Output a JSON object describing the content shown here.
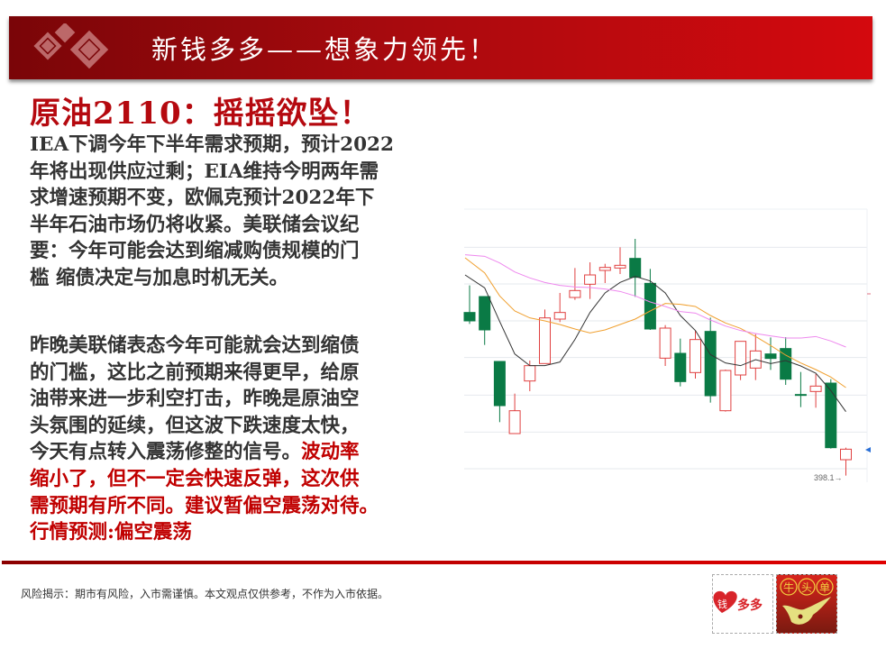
{
  "header": {
    "title": "新钱多多——想象力领先！"
  },
  "main": {
    "title": "原油2110：摇摇欲坠！",
    "paragraph1": [
      "IEA下调今年下半年需求预期，预计2022",
      "年将出现供应过剩；EIA维持今明两年需",
      "求增速预期不变，欧佩克预计2022年下",
      "半年石油市场仍将收紧。美联储会议纪",
      "要：今年可能会达到缩减购债规模的门",
      "槛 缩债决定与加息时机无关。"
    ],
    "paragraph2": [
      {
        "text": "昨晚美联储表态今年可能就会达到缩债",
        "red": ""
      },
      {
        "text": "的门槛，这比之前预期来得更早，给原",
        "red": ""
      },
      {
        "text": "油带来进一步利空打击，昨晚是原油空",
        "red": ""
      },
      {
        "text": "头氛围的延续，但这波下跌速度太快，",
        "red": ""
      },
      {
        "text": "今天有点转入震荡修整的信号。",
        "red": "波动率"
      },
      {
        "text": "",
        "red": "缩小了，但不一定会快速反弹，这次供"
      },
      {
        "text": "",
        "red": "需预期有所不同。建议暂偏空震荡对待。"
      },
      {
        "text": "",
        "red": "行情预测:偏空震荡"
      }
    ]
  },
  "footer": {
    "risk_notice": "风险揭示：期市有风险，入市需谨慎。本文观点仅供参考，不作为入市依据。",
    "logo1_text": "钱多多",
    "logo2_text": "牛头单"
  },
  "colors": {
    "up": "#e04040",
    "down": "#0a7a45",
    "brand_red": "#c00000"
  },
  "chart_data": {
    "type": "candlestick",
    "price_label": "398.1",
    "ylim": [
      395.9,
      486.8
    ],
    "grid": "horizontal",
    "gridlines": [
      474.1,
      461.9,
      449.6,
      437.4,
      424.9,
      412.6,
      400.4
    ],
    "candles": [
      {
        "o": 452.4,
        "c": 449.6,
        "h": 461.4,
        "l": 448.6
      },
      {
        "o": 457.7,
        "c": 446.6,
        "h": 457.7,
        "l": 441.6
      },
      {
        "o": 436.1,
        "c": 421.4,
        "h": 436.1,
        "l": 415.9
      },
      {
        "o": 412.1,
        "c": 419.7,
        "h": 425.4,
        "l": 412.1
      },
      {
        "o": 429.6,
        "c": 434.7,
        "h": 436.4,
        "l": 426.2
      },
      {
        "o": 435.4,
        "c": 450.6,
        "h": 453.4,
        "l": 435.4
      },
      {
        "o": 450.2,
        "c": 452.4,
        "h": 458.9,
        "l": 449.2
      },
      {
        "o": 457.4,
        "c": 459.7,
        "h": 467.2,
        "l": 456.6
      },
      {
        "o": 461.8,
        "c": 464.9,
        "h": 469.1,
        "l": 456.9
      },
      {
        "o": 466.4,
        "c": 467.4,
        "h": 468.6,
        "l": 462.2
      },
      {
        "o": 467.2,
        "c": 468.1,
        "h": 474.1,
        "l": 465.2
      },
      {
        "o": 470.4,
        "c": 464.1,
        "h": 476.9,
        "l": 457.6
      },
      {
        "o": 462.1,
        "c": 446.9,
        "h": 466.9,
        "l": 446.6
      },
      {
        "o": 437.2,
        "c": 447.2,
        "h": 448.2,
        "l": 434.6
      },
      {
        "o": 438.8,
        "c": 429.4,
        "h": 443.7,
        "l": 427.8
      },
      {
        "o": 432.4,
        "c": 443.4,
        "h": 446.4,
        "l": 430.4
      },
      {
        "o": 446.1,
        "c": 424.7,
        "h": 450.7,
        "l": 422.4
      },
      {
        "o": 419.7,
        "c": 433.1,
        "h": 433.4,
        "l": 419.4
      },
      {
        "o": 431.6,
        "c": 442.8,
        "h": 442.8,
        "l": 429.9
      },
      {
        "o": 433.9,
        "c": 439.6,
        "h": 445.2,
        "l": 429.9
      },
      {
        "o": 438.6,
        "c": 437.1,
        "h": 444.1,
        "l": 433.3
      },
      {
        "o": 440.4,
        "c": 430.2,
        "h": 444.2,
        "l": 428.3
      },
      {
        "o": 425.1,
        "c": 424.8,
        "h": 432.6,
        "l": 420.9
      },
      {
        "o": 426.1,
        "c": 427.9,
        "h": 431.9,
        "l": 420.7
      },
      {
        "o": 428.9,
        "c": 407.4,
        "h": 430.2,
        "l": 407.1
      },
      {
        "o": 403.4,
        "c": 406.9,
        "h": 407.4,
        "l": 398.1
      }
    ],
    "series": [
      {
        "color": "#333333",
        "values": [
          464.9,
          460.6,
          449.4,
          438.6,
          434.7,
          434.7,
          435.9,
          443.4,
          452.4,
          458.9,
          462.4,
          464.4,
          462.9,
          458.9,
          451.4,
          446.4,
          438.4,
          435.6,
          434.7,
          436.7,
          435.4,
          436.4,
          434.6,
          432.2,
          426.4,
          419.4
        ]
      },
      {
        "color": "#f0a030",
        "values": [
          470.6,
          465.6,
          457.9,
          452.9,
          450.6,
          449.6,
          448.4,
          446.9,
          445.6,
          446.6,
          448.4,
          450.2,
          452.9,
          455.4,
          455.1,
          454.4,
          451.4,
          448.9,
          447.1,
          444.4,
          441.4,
          438.2,
          435.6,
          433.4,
          430.9,
          427.4
        ]
      },
      {
        "color": "#ee88ee",
        "values": [
          471.6,
          471.1,
          468.9,
          465.9,
          463.9,
          462.4,
          461.4,
          460.9,
          460.7,
          460.2,
          459.4,
          457.9,
          455.9,
          454.4,
          452.7,
          452.2,
          449.9,
          447.9,
          446.4,
          445.4,
          444.6,
          443.9,
          443.9,
          444.4,
          442.9,
          440.9
        ]
      }
    ]
  }
}
